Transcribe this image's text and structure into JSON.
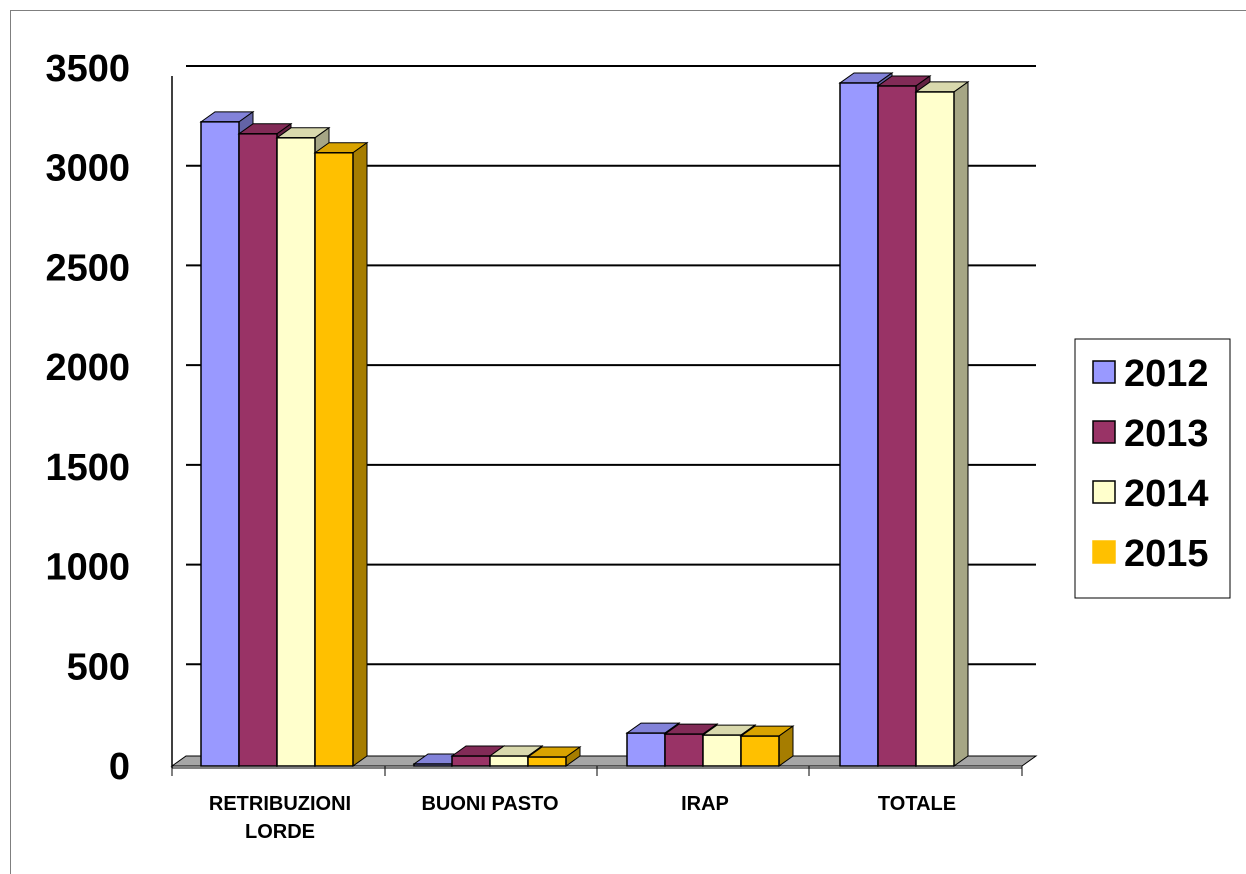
{
  "chart_data": {
    "type": "bar",
    "style": "3d-clustered-column",
    "categories": [
      [
        "RETRIBUZIONI",
        "LORDE"
      ],
      [
        "BUONI PASTO"
      ],
      [
        "IRAP"
      ],
      [
        "TOTALE"
      ]
    ],
    "series": [
      {
        "name": "2012",
        "color": "#9999ff",
        "values": [
          3230,
          10,
          165,
          3425
        ]
      },
      {
        "name": "2013",
        "color": "#993366",
        "values": [
          3170,
          50,
          160,
          3410
        ]
      },
      {
        "name": "2014",
        "color": "#ffffcc",
        "values": [
          3150,
          50,
          155,
          3380
        ]
      },
      {
        "name": "2015",
        "color": "#ffc000",
        "values": [
          3075,
          45,
          150,
          null
        ]
      }
    ],
    "ylim": [
      0,
      3500
    ],
    "yticks": [
      0,
      500,
      1000,
      1500,
      2000,
      2500,
      3000,
      3500
    ],
    "grid": true,
    "legend_position": "right"
  }
}
